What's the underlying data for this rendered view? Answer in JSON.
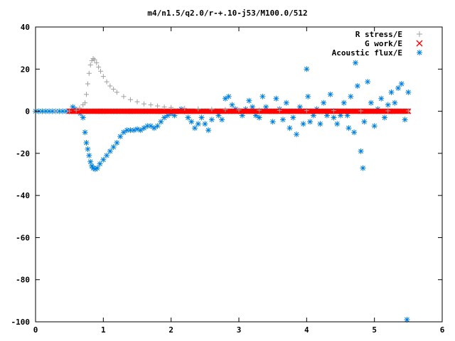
{
  "chart_data": {
    "type": "scatter",
    "title": "m4/n1.5/q2.0/r-+.10-j53/M100.0/512",
    "xlabel": "",
    "ylabel": "",
    "xlim": [
      0,
      6
    ],
    "ylim": [
      -100,
      40
    ],
    "xticks": [
      "0",
      "1",
      "2",
      "3",
      "4",
      "5",
      "6"
    ],
    "yticks": [
      "40",
      "20",
      "0",
      "-20",
      "-40",
      "-60",
      "-80",
      "-100"
    ],
    "grid": false,
    "legend_position": "top-right",
    "series": [
      {
        "name": "R stress/E",
        "marker": "plus",
        "color": "#a0a0a0",
        "points": [
          [
            0.0,
            0
          ],
          [
            0.3,
            0
          ],
          [
            0.5,
            0.1
          ],
          [
            0.6,
            0.5
          ],
          [
            0.65,
            1.5
          ],
          [
            0.7,
            3
          ],
          [
            0.73,
            4
          ],
          [
            0.75,
            8
          ],
          [
            0.77,
            13
          ],
          [
            0.79,
            18
          ],
          [
            0.81,
            22
          ],
          [
            0.83,
            24
          ],
          [
            0.85,
            25
          ],
          [
            0.87,
            24.5
          ],
          [
            0.9,
            23
          ],
          [
            0.93,
            21
          ],
          [
            0.96,
            19
          ],
          [
            1.0,
            16.5
          ],
          [
            1.05,
            14
          ],
          [
            1.1,
            12
          ],
          [
            1.15,
            10.5
          ],
          [
            1.2,
            9
          ],
          [
            1.3,
            7
          ],
          [
            1.4,
            5.5
          ],
          [
            1.5,
            4.5
          ],
          [
            1.6,
            3.5
          ],
          [
            1.7,
            3
          ],
          [
            1.8,
            2.5
          ],
          [
            1.9,
            2
          ],
          [
            2.0,
            1.8
          ],
          [
            2.2,
            1.4
          ],
          [
            2.4,
            1.1
          ],
          [
            2.6,
            0.9
          ],
          [
            2.8,
            0.8
          ],
          [
            3.0,
            0.6
          ],
          [
            3.3,
            0.5
          ],
          [
            3.6,
            0.4
          ],
          [
            4.0,
            0.3
          ],
          [
            4.4,
            0.3
          ],
          [
            4.8,
            0.2
          ],
          [
            5.2,
            0.2
          ],
          [
            5.5,
            0.2
          ]
        ]
      },
      {
        "name": "G work/E",
        "marker": "cross",
        "color": "#ff0000",
        "x_range": [
          0.5,
          5.5
        ],
        "y_value": 0
      },
      {
        "name": "Acoustic flux/E",
        "marker": "asterisk",
        "color": "#0080e0",
        "points": [
          [
            0.0,
            0
          ],
          [
            0.05,
            0
          ],
          [
            0.1,
            0
          ],
          [
            0.15,
            0
          ],
          [
            0.2,
            0
          ],
          [
            0.25,
            0
          ],
          [
            0.3,
            0
          ],
          [
            0.35,
            0
          ],
          [
            0.4,
            0
          ],
          [
            0.45,
            0
          ],
          [
            0.5,
            0
          ],
          [
            0.55,
            2
          ],
          [
            0.58,
            1
          ],
          [
            0.62,
            0
          ],
          [
            0.66,
            -1
          ],
          [
            0.7,
            -3
          ],
          [
            0.73,
            -10
          ],
          [
            0.75,
            -15
          ],
          [
            0.77,
            -18
          ],
          [
            0.79,
            -21
          ],
          [
            0.81,
            -24
          ],
          [
            0.83,
            -26
          ],
          [
            0.85,
            -27
          ],
          [
            0.88,
            -27.5
          ],
          [
            0.91,
            -27
          ],
          [
            0.95,
            -25
          ],
          [
            1.0,
            -23
          ],
          [
            1.05,
            -21
          ],
          [
            1.1,
            -19
          ],
          [
            1.15,
            -17
          ],
          [
            1.2,
            -15
          ],
          [
            1.25,
            -12
          ],
          [
            1.3,
            -10
          ],
          [
            1.35,
            -9
          ],
          [
            1.4,
            -9
          ],
          [
            1.45,
            -9
          ],
          [
            1.5,
            -8.5
          ],
          [
            1.55,
            -9
          ],
          [
            1.6,
            -8
          ],
          [
            1.65,
            -7
          ],
          [
            1.7,
            -7
          ],
          [
            1.75,
            -8
          ],
          [
            1.8,
            -7
          ],
          [
            1.85,
            -5
          ],
          [
            1.9,
            -3
          ],
          [
            1.95,
            -2
          ],
          [
            2.0,
            -1
          ],
          [
            2.05,
            -2
          ],
          [
            2.1,
            0
          ],
          [
            2.15,
            1
          ],
          [
            2.2,
            0
          ],
          [
            2.25,
            -3
          ],
          [
            2.3,
            -5
          ],
          [
            2.35,
            -8
          ],
          [
            2.4,
            -6
          ],
          [
            2.45,
            -3
          ],
          [
            2.5,
            -6
          ],
          [
            2.55,
            -9
          ],
          [
            2.6,
            -4
          ],
          [
            2.65,
            0
          ],
          [
            2.7,
            -2
          ],
          [
            2.75,
            -4
          ],
          [
            2.8,
            6
          ],
          [
            2.85,
            7
          ],
          [
            2.9,
            3
          ],
          [
            2.95,
            1
          ],
          [
            3.0,
            0
          ],
          [
            3.05,
            -2
          ],
          [
            3.1,
            1
          ],
          [
            3.15,
            5
          ],
          [
            3.2,
            2
          ],
          [
            3.25,
            -2
          ],
          [
            3.3,
            -3
          ],
          [
            3.35,
            7
          ],
          [
            3.4,
            2
          ],
          [
            3.45,
            0
          ],
          [
            3.5,
            -5
          ],
          [
            3.55,
            6
          ],
          [
            3.6,
            1
          ],
          [
            3.65,
            -4
          ],
          [
            3.7,
            4
          ],
          [
            3.75,
            -8
          ],
          [
            3.8,
            -3
          ],
          [
            3.85,
            -11
          ],
          [
            3.9,
            2
          ],
          [
            3.95,
            -6
          ],
          [
            4.0,
            20
          ],
          [
            4.02,
            7
          ],
          [
            4.05,
            -5
          ],
          [
            4.1,
            -2
          ],
          [
            4.15,
            1
          ],
          [
            4.2,
            -6
          ],
          [
            4.25,
            4
          ],
          [
            4.3,
            -2
          ],
          [
            4.35,
            8
          ],
          [
            4.4,
            -3
          ],
          [
            4.45,
            -6
          ],
          [
            4.5,
            -2
          ],
          [
            4.55,
            4
          ],
          [
            4.6,
            -2
          ],
          [
            4.62,
            -8
          ],
          [
            4.65,
            7
          ],
          [
            4.7,
            -10
          ],
          [
            4.72,
            23
          ],
          [
            4.75,
            12
          ],
          [
            4.8,
            -19
          ],
          [
            4.83,
            -27
          ],
          [
            4.85,
            -5
          ],
          [
            4.9,
            14
          ],
          [
            4.95,
            4
          ],
          [
            5.0,
            -7
          ],
          [
            5.05,
            1
          ],
          [
            5.1,
            6
          ],
          [
            5.15,
            -3
          ],
          [
            5.2,
            3
          ],
          [
            5.25,
            9
          ],
          [
            5.3,
            4
          ],
          [
            5.35,
            11
          ],
          [
            5.4,
            13
          ],
          [
            5.45,
            -4
          ],
          [
            5.5,
            9
          ],
          [
            5.48,
            -99
          ]
        ]
      }
    ]
  }
}
